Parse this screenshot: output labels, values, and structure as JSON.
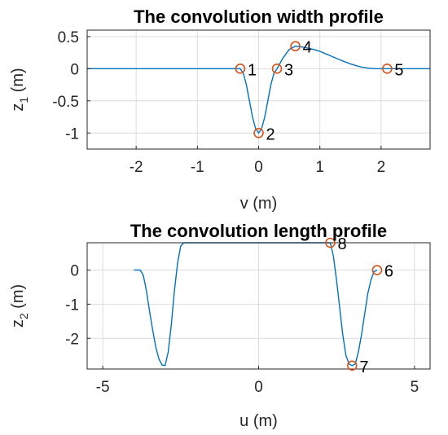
{
  "chart_data": [
    {
      "type": "line",
      "title": "The convolution width profile",
      "xlabel": "v (m)",
      "ylabel_main": "z",
      "ylabel_sub": "1",
      "ylabel_unit": " (m)",
      "xlim": [
        -2.8,
        2.8
      ],
      "ylim": [
        -1.25,
        0.6
      ],
      "xticks": [
        -2,
        -1,
        0,
        1,
        2
      ],
      "xtick_labels": [
        "-2",
        "-1",
        "0",
        "1",
        "2"
      ],
      "yticks": [
        -1,
        -0.5,
        0,
        0.5
      ],
      "ytick_labels": [
        "-1",
        "-0.5",
        "0",
        "0.5"
      ],
      "grid": true,
      "color": "#0072bd",
      "series": [
        {
          "x": [
            -2.8,
            -0.5,
            -0.3,
            -0.25,
            -0.2,
            -0.15,
            -0.1,
            -0.05,
            0.0,
            0.05,
            0.1,
            0.15,
            0.2,
            0.25,
            0.3,
            0.4,
            0.5,
            0.6,
            0.7,
            0.8,
            0.9,
            1.0,
            1.1,
            1.2,
            1.3,
            1.4,
            1.5,
            1.6,
            1.7,
            1.8,
            1.9,
            2.0,
            2.1,
            2.8
          ],
          "y": [
            0,
            0,
            0,
            -0.07,
            -0.25,
            -0.5,
            -0.75,
            -0.93,
            -1.0,
            -0.93,
            -0.75,
            -0.5,
            -0.25,
            -0.07,
            0,
            0.17,
            0.3,
            0.35,
            0.34,
            0.32,
            0.3,
            0.27,
            0.23,
            0.19,
            0.15,
            0.11,
            0.075,
            0.045,
            0.022,
            0.008,
            0.002,
            0.0,
            0,
            0
          ]
        }
      ],
      "points": [
        {
          "label": "1",
          "x": -0.3,
          "y": 0
        },
        {
          "label": "2",
          "x": 0.0,
          "y": -1.0
        },
        {
          "label": "3",
          "x": 0.3,
          "y": 0
        },
        {
          "label": "4",
          "x": 0.6,
          "y": 0.35
        },
        {
          "label": "5",
          "x": 2.1,
          "y": 0
        }
      ],
      "marker_color": "#d95319"
    },
    {
      "type": "line",
      "title": "The convolution length profile",
      "xlabel": "u (m)",
      "ylabel_main": "z",
      "ylabel_sub": "2",
      "ylabel_unit": " (m)",
      "xlim": [
        -5.5,
        5.5
      ],
      "ylim": [
        -2.9,
        0.8
      ],
      "xticks": [
        -5,
        0,
        5
      ],
      "xtick_labels": [
        "-5",
        "0",
        "5"
      ],
      "yticks": [
        -2,
        -1,
        0
      ],
      "ytick_labels": [
        "-2",
        "-1",
        "0"
      ],
      "grid": true,
      "color": "#0072bd",
      "series": [
        {
          "x": [
            -4.0,
            -3.8,
            -3.7,
            -3.6,
            -3.5,
            -3.4,
            -3.3,
            -3.2,
            -3.1,
            -3.0,
            -2.9,
            -2.8,
            -2.7,
            -2.6,
            -2.5,
            -2.4,
            2.3,
            2.4,
            2.5,
            2.6,
            2.7,
            2.8,
            2.9,
            3.0,
            3.1,
            3.2,
            3.3,
            3.4,
            3.5,
            3.6,
            3.7,
            3.8
          ],
          "y": [
            0,
            0,
            -0.15,
            -0.6,
            -1.2,
            -1.75,
            -2.25,
            -2.6,
            -2.78,
            -2.8,
            -2.4,
            -1.6,
            -0.6,
            0.2,
            0.7,
            0.8,
            0.8,
            0.4,
            -0.3,
            -1.1,
            -1.9,
            -2.5,
            -2.75,
            -2.8,
            -2.75,
            -2.4,
            -1.9,
            -1.3,
            -0.7,
            -0.3,
            -0.05,
            0
          ]
        }
      ],
      "points": [
        {
          "label": "6",
          "x": 3.8,
          "y": 0
        },
        {
          "label": "7",
          "x": 3.0,
          "y": -2.8
        },
        {
          "label": "8",
          "x": 2.3,
          "y": 0.8
        }
      ],
      "marker_color": "#d95319"
    }
  ]
}
